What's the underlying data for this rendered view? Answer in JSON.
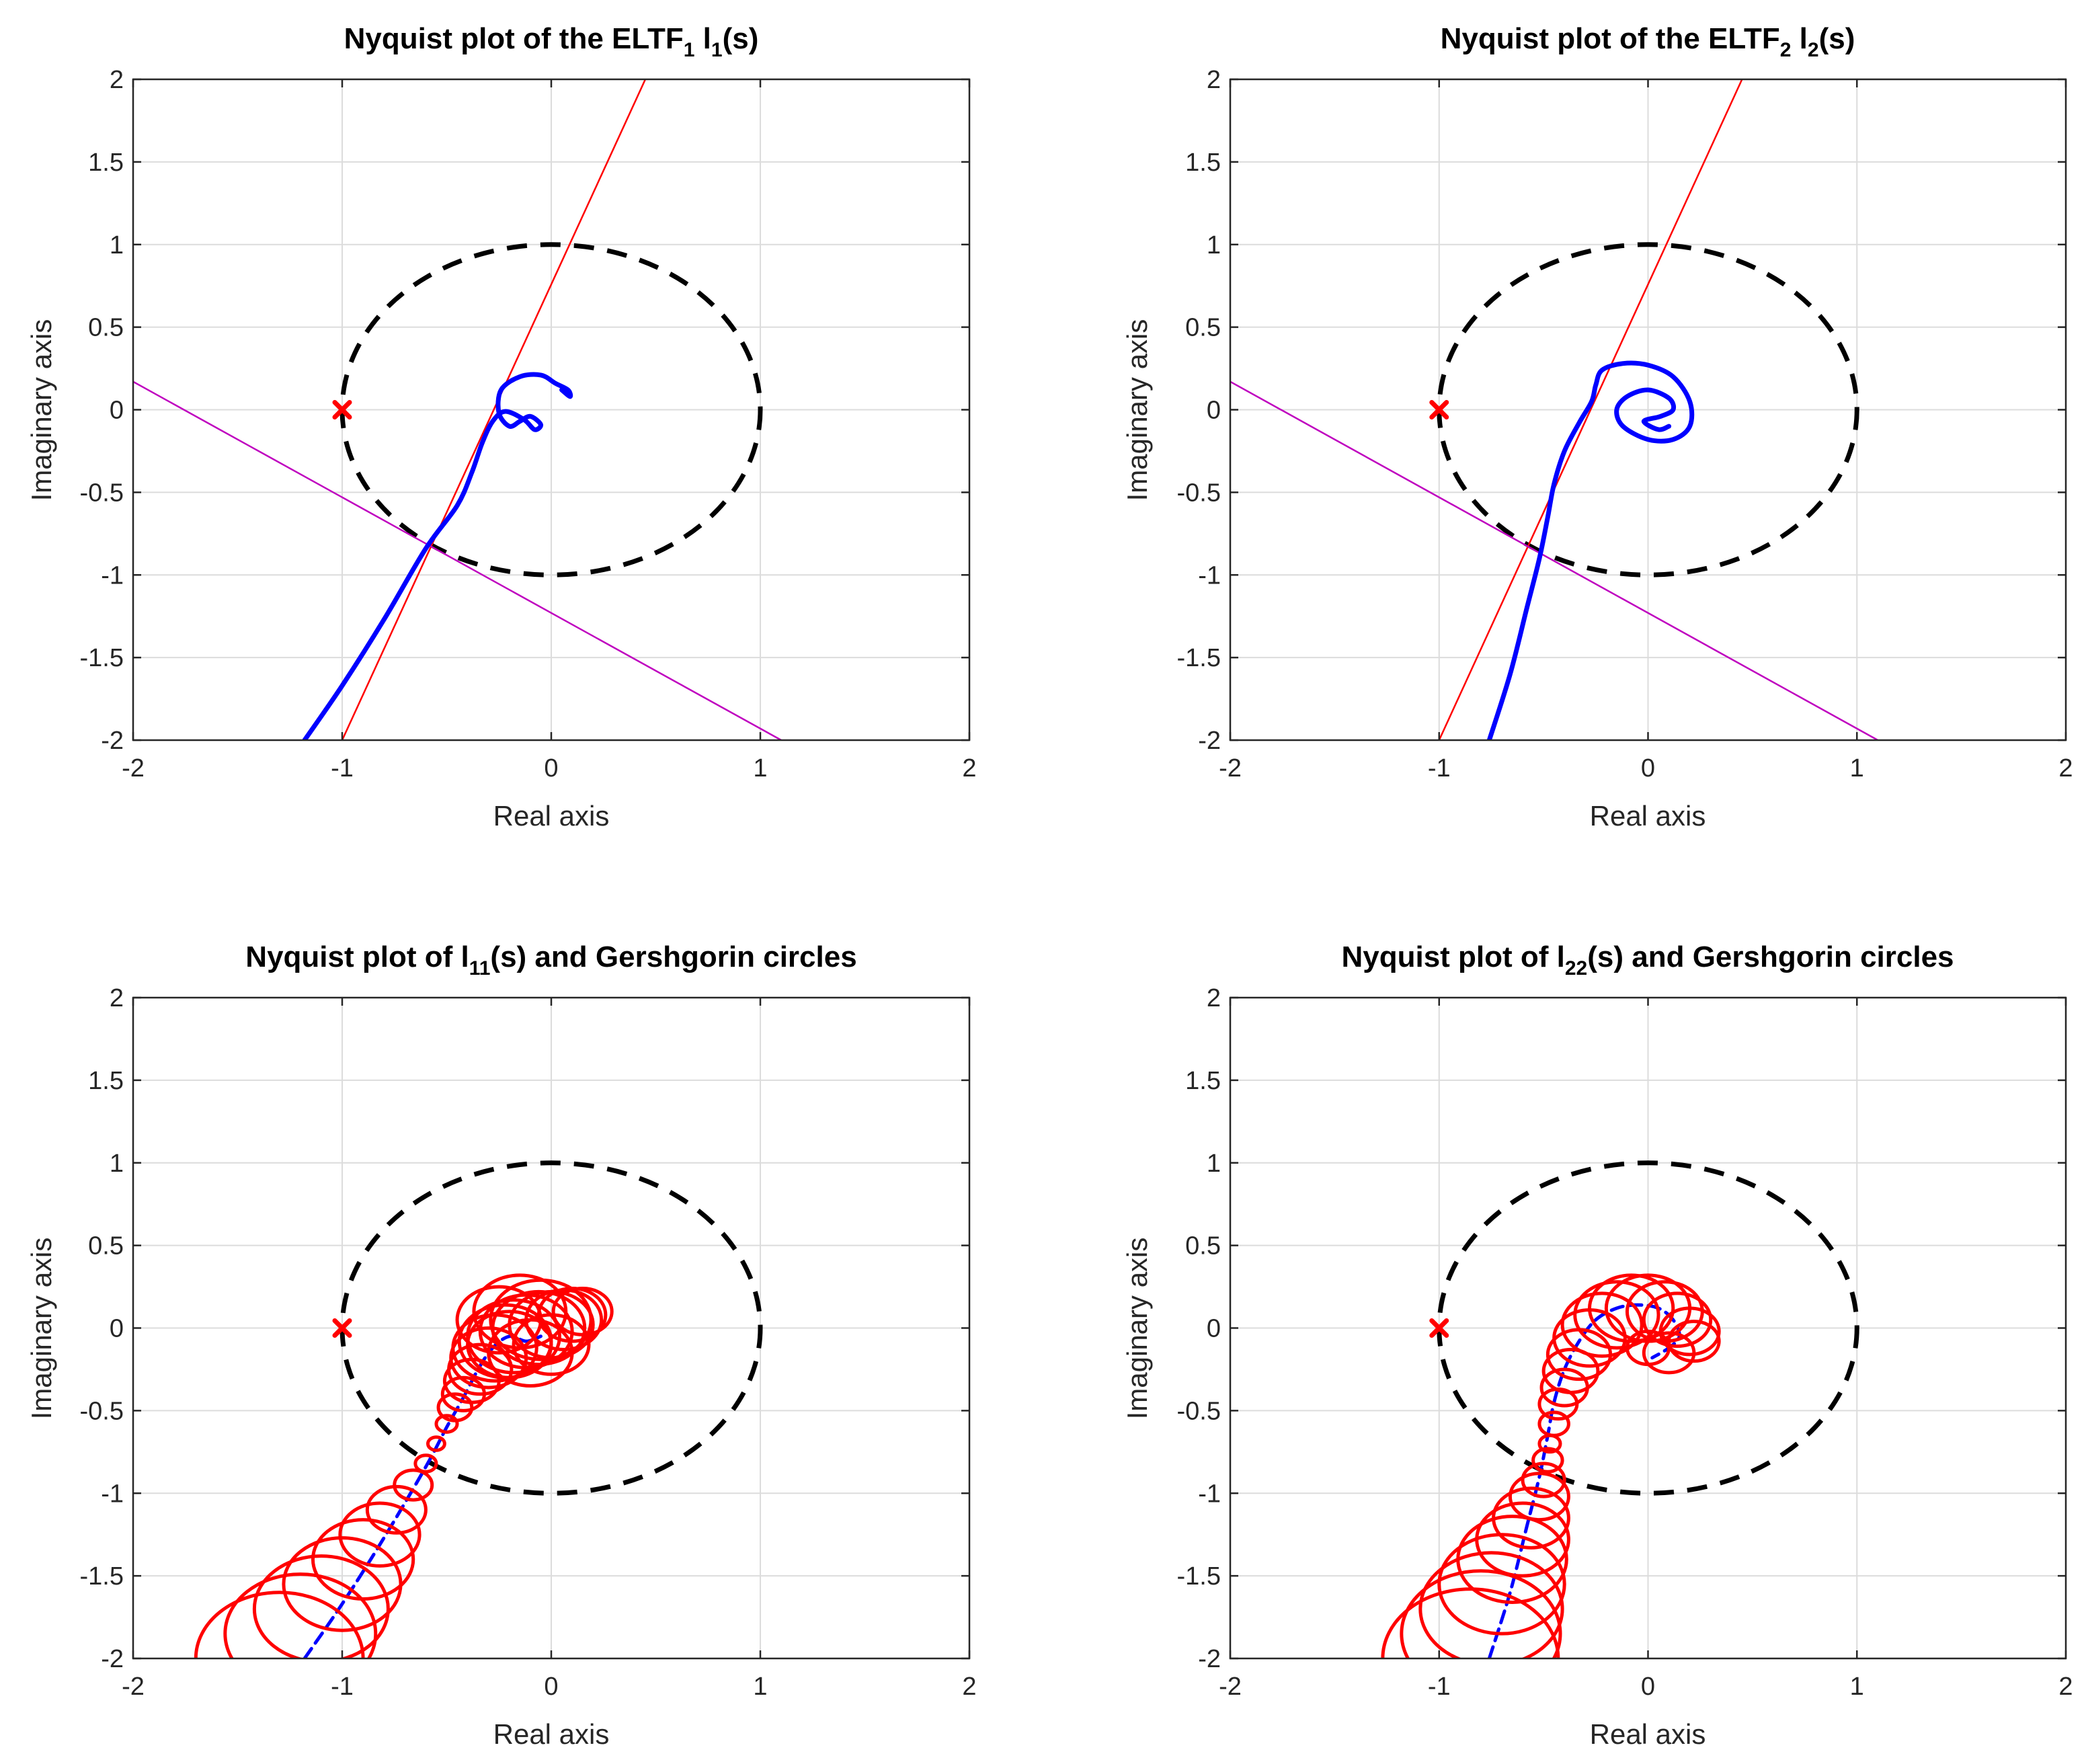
{
  "figure": {
    "background": "#ffffff"
  },
  "chart_data": [
    {
      "type": "line",
      "title_parts": [
        "Nyquist plot of the ELTF",
        "1",
        " l",
        "1",
        "(s)"
      ],
      "xlabel": "Real axis",
      "ylabel": "Imaginary axis",
      "xlim": [
        -2,
        2
      ],
      "ylim": [
        -2,
        2
      ],
      "xticks": [
        -2,
        -1,
        0,
        1,
        2
      ],
      "yticks": [
        -2,
        -1.5,
        -1,
        -0.5,
        0,
        0.5,
        1,
        1.5,
        2
      ],
      "grid": true,
      "series": [
        {
          "name": "unit circle",
          "kind": "circle",
          "center": [
            0,
            0
          ],
          "radius": 1,
          "color": "#000000",
          "style": "dashed"
        },
        {
          "name": "line 1",
          "kind": "line",
          "color": "#ff0000",
          "x": [
            -1.0,
            0.45
          ],
          "y": [
            -2.0,
            2.0
          ]
        },
        {
          "name": "line 2",
          "kind": "line",
          "color": "#bf00bf",
          "x": [
            -2.0,
            1.1
          ],
          "y": [
            0.17,
            -2.0
          ]
        },
        {
          "name": "critical point",
          "kind": "marker",
          "color": "#ff0000",
          "marker": "x",
          "x": [
            -1
          ],
          "y": [
            0
          ]
        },
        {
          "name": "l1 locus",
          "kind": "curve",
          "color": "#0000ff",
          "x": [
            -1.18,
            -1.0,
            -0.8,
            -0.6,
            -0.45,
            -0.38,
            -0.33,
            -0.28,
            -0.22,
            -0.13,
            -0.08,
            -0.05,
            -0.1,
            -0.15,
            -0.2,
            -0.25,
            -0.24,
            -0.15,
            -0.05,
            0.02,
            0.08,
            0.09,
            0.05
          ],
          "y": [
            -2.0,
            -1.67,
            -1.27,
            -0.84,
            -0.58,
            -0.38,
            -0.2,
            -0.07,
            -0.01,
            -0.06,
            -0.12,
            -0.09,
            -0.04,
            -0.07,
            -0.1,
            -0.02,
            0.12,
            0.2,
            0.21,
            0.16,
            0.12,
            0.08,
            0.12
          ]
        }
      ]
    },
    {
      "type": "line",
      "title_parts": [
        "Nyquist plot of the ELTF",
        "2",
        " l",
        "2",
        "(s)"
      ],
      "xlabel": "Real axis",
      "ylabel": "Imaginary axis",
      "xlim": [
        -2,
        2
      ],
      "ylim": [
        -2,
        2
      ],
      "xticks": [
        -2,
        -1,
        0,
        1,
        2
      ],
      "yticks": [
        -2,
        -1.5,
        -1,
        -0.5,
        0,
        0.5,
        1,
        1.5,
        2
      ],
      "grid": true,
      "series": [
        {
          "name": "unit circle",
          "kind": "circle",
          "center": [
            0,
            0
          ],
          "radius": 1,
          "color": "#000000",
          "style": "dashed"
        },
        {
          "name": "line 1",
          "kind": "line",
          "color": "#ff0000",
          "x": [
            -1.0,
            0.45
          ],
          "y": [
            -2.0,
            2.0
          ]
        },
        {
          "name": "line 2",
          "kind": "line",
          "color": "#bf00bf",
          "x": [
            -2.0,
            1.1
          ],
          "y": [
            0.17,
            -2.0
          ]
        },
        {
          "name": "critical point",
          "kind": "marker",
          "color": "#ff0000",
          "marker": "x",
          "x": [
            -1
          ],
          "y": [
            0
          ]
        },
        {
          "name": "l2 locus",
          "kind": "curve",
          "color": "#0000ff",
          "x": [
            -0.76,
            -0.66,
            -0.58,
            -0.52,
            -0.48,
            -0.45,
            -0.4,
            -0.33,
            -0.27,
            -0.25,
            -0.22,
            -0.12,
            0.0,
            0.12,
            0.2,
            0.2,
            0.12,
            0.0,
            -0.12,
            -0.15,
            -0.1,
            0.0,
            0.1,
            0.12,
            0.06,
            -0.02,
            0.05,
            0.1
          ],
          "y": [
            -2.0,
            -1.6,
            -1.2,
            -0.9,
            -0.65,
            -0.45,
            -0.25,
            -0.08,
            0.05,
            0.15,
            0.24,
            0.28,
            0.27,
            0.2,
            0.05,
            -0.1,
            -0.18,
            -0.18,
            -0.1,
            0.0,
            0.08,
            0.12,
            0.07,
            0.0,
            -0.04,
            -0.07,
            -0.12,
            -0.1
          ]
        }
      ]
    },
    {
      "type": "line",
      "title_parts": [
        "Nyquist plot of l",
        "11",
        "(s) and Gershgorin circles"
      ],
      "xlabel": "Real axis",
      "ylabel": "Imaginary axis",
      "xlim": [
        -2,
        2
      ],
      "ylim": [
        -2,
        2
      ],
      "xticks": [
        -2,
        -1,
        0,
        1,
        2
      ],
      "yticks": [
        -2,
        -1.5,
        -1,
        -0.5,
        0,
        0.5,
        1,
        1.5,
        2
      ],
      "grid": true,
      "series": [
        {
          "name": "unit circle",
          "kind": "circle",
          "center": [
            0,
            0
          ],
          "radius": 1,
          "color": "#000000",
          "style": "dashed"
        },
        {
          "name": "critical point",
          "kind": "marker",
          "color": "#ff0000",
          "marker": "x",
          "x": [
            -1
          ],
          "y": [
            0
          ]
        },
        {
          "name": "l11 locus",
          "kind": "curve",
          "color": "#0000ff",
          "style": "dashed",
          "x": [
            -1.18,
            -1.0,
            -0.8,
            -0.6,
            -0.5,
            -0.42,
            -0.35,
            -0.28,
            -0.2,
            -0.12,
            -0.05
          ],
          "y": [
            -2.0,
            -1.67,
            -1.27,
            -0.84,
            -0.6,
            -0.42,
            -0.25,
            -0.12,
            -0.05,
            -0.08,
            -0.05
          ]
        },
        {
          "name": "Gershgorin circles",
          "kind": "circles",
          "color": "#ff0000",
          "cx": [
            -1.3,
            -1.2,
            -1.1,
            -1.0,
            -0.9,
            -0.82,
            -0.74,
            -0.66,
            -0.6,
            -0.55,
            -0.5,
            -0.46,
            -0.42,
            -0.38,
            -0.34,
            -0.3,
            -0.27,
            -0.22,
            -0.18,
            -0.12,
            -0.06,
            0.0,
            0.06,
            0.1,
            0.15,
            -0.25,
            -0.15,
            -0.05,
            -0.2,
            -0.1,
            0.0
          ],
          "cy": [
            -2.0,
            -1.85,
            -1.7,
            -1.55,
            -1.4,
            -1.25,
            -1.1,
            -0.95,
            -0.82,
            -0.7,
            -0.58,
            -0.48,
            -0.4,
            -0.32,
            -0.25,
            -0.18,
            -0.12,
            -0.08,
            -0.05,
            -0.02,
            0.0,
            0.02,
            0.05,
            0.08,
            0.1,
            0.05,
            0.1,
            0.05,
            -0.1,
            -0.15,
            -0.1
          ],
          "r": [
            0.4,
            0.36,
            0.32,
            0.28,
            0.24,
            0.19,
            0.14,
            0.09,
            0.05,
            0.04,
            0.05,
            0.08,
            0.1,
            0.13,
            0.15,
            0.18,
            0.2,
            0.22,
            0.22,
            0.22,
            0.22,
            0.2,
            0.18,
            0.16,
            0.14,
            0.2,
            0.22,
            0.24,
            0.2,
            0.2,
            0.18
          ]
        }
      ]
    },
    {
      "type": "line",
      "title_parts": [
        "Nyquist plot of l",
        "22",
        "(s) and Gershgorin circles"
      ],
      "xlabel": "Real axis",
      "ylabel": "Imaginary axis",
      "xlim": [
        -2,
        2
      ],
      "ylim": [
        -2,
        2
      ],
      "xticks": [
        -2,
        -1,
        0,
        1,
        2
      ],
      "yticks": [
        -2,
        -1.5,
        -1,
        -0.5,
        0,
        0.5,
        1,
        1.5,
        2
      ],
      "grid": true,
      "series": [
        {
          "name": "unit circle",
          "kind": "circle",
          "center": [
            0,
            0
          ],
          "radius": 1,
          "color": "#000000",
          "style": "dashed"
        },
        {
          "name": "critical point",
          "kind": "marker",
          "color": "#ff0000",
          "marker": "x",
          "x": [
            -1
          ],
          "y": [
            0
          ]
        },
        {
          "name": "l22 locus",
          "kind": "curve",
          "color": "#0000ff",
          "style": "dashed",
          "x": [
            -0.76,
            -0.66,
            -0.58,
            -0.52,
            -0.48,
            -0.45,
            -0.4,
            -0.33,
            -0.25,
            -0.15,
            -0.05,
            0.05,
            0.12,
            0.15,
            0.1,
            0.02
          ],
          "y": [
            -2.0,
            -1.6,
            -1.2,
            -0.9,
            -0.65,
            -0.45,
            -0.25,
            -0.08,
            0.05,
            0.12,
            0.14,
            0.12,
            0.05,
            -0.05,
            -0.12,
            -0.18
          ]
        },
        {
          "name": "Gershgorin circles",
          "kind": "circles",
          "color": "#ff0000",
          "cx": [
            -0.85,
            -0.8,
            -0.75,
            -0.7,
            -0.65,
            -0.6,
            -0.56,
            -0.52,
            -0.5,
            -0.48,
            -0.47,
            -0.45,
            -0.43,
            -0.4,
            -0.37,
            -0.33,
            -0.28,
            -0.22,
            -0.15,
            -0.08,
            0.0,
            0.08,
            0.14,
            0.2,
            0.22,
            0.1,
            0.0
          ],
          "cy": [
            -2.0,
            -1.85,
            -1.7,
            -1.55,
            -1.4,
            -1.28,
            -1.15,
            -1.02,
            -0.92,
            -0.8,
            -0.7,
            -0.58,
            -0.46,
            -0.36,
            -0.26,
            -0.16,
            -0.06,
            0.02,
            0.08,
            0.12,
            0.12,
            0.1,
            0.05,
            -0.02,
            -0.08,
            -0.15,
            -0.12
          ],
          "r": [
            0.42,
            0.38,
            0.34,
            0.3,
            0.26,
            0.22,
            0.18,
            0.14,
            0.1,
            0.07,
            0.05,
            0.07,
            0.09,
            0.11,
            0.13,
            0.15,
            0.17,
            0.19,
            0.2,
            0.2,
            0.2,
            0.18,
            0.16,
            0.14,
            0.12,
            0.12,
            0.1
          ]
        }
      ]
    }
  ]
}
